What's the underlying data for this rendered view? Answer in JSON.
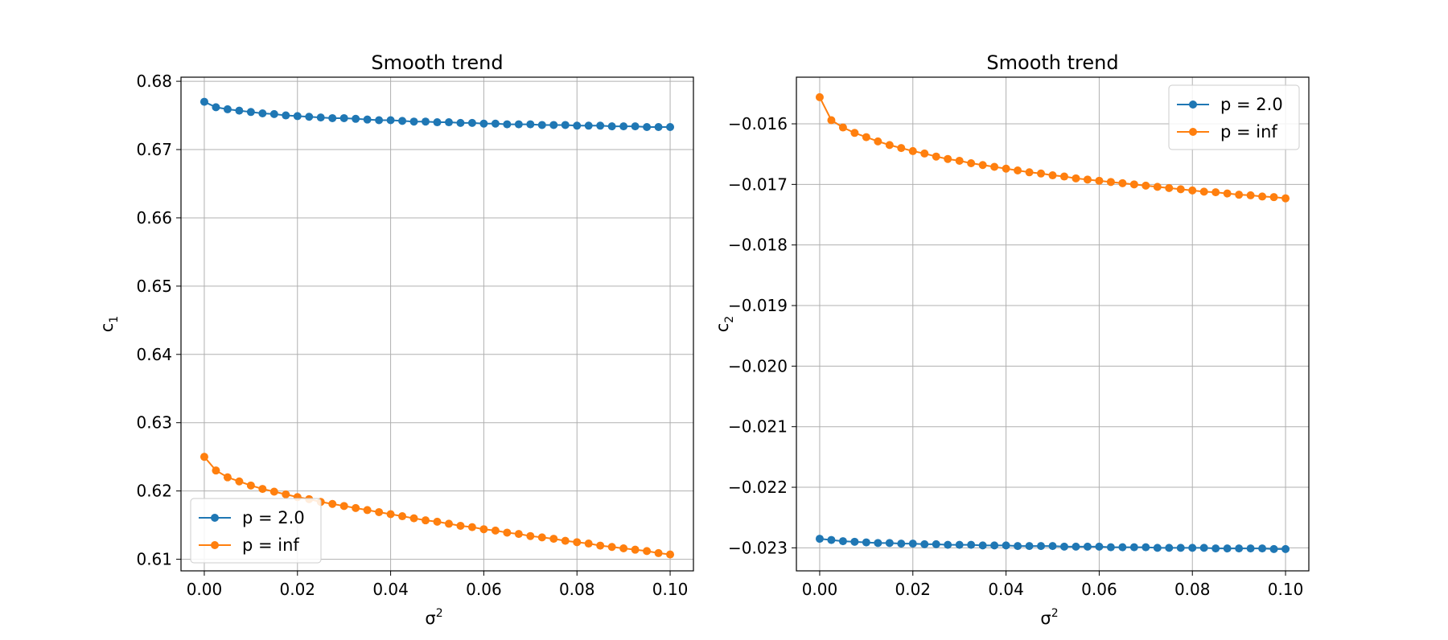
{
  "chart_data": [
    {
      "type": "line",
      "title": "Smooth trend",
      "xlabel": "σ",
      "xlabel_sup": "2",
      "ylabel": "c",
      "ylabel_sub": "1",
      "xlim": [
        -0.005,
        0.105
      ],
      "ylim": [
        0.6083,
        0.6806
      ],
      "xticks": [
        0.0,
        0.02,
        0.04,
        0.06,
        0.08,
        0.1
      ],
      "xtick_labels": [
        "0.00",
        "0.02",
        "0.04",
        "0.06",
        "0.08",
        "0.10"
      ],
      "yticks": [
        0.61,
        0.62,
        0.63,
        0.64,
        0.65,
        0.66,
        0.67,
        0.68
      ],
      "ytick_labels": [
        "0.61",
        "0.62",
        "0.63",
        "0.64",
        "0.65",
        "0.66",
        "0.67",
        "0.68"
      ],
      "grid": true,
      "legend": "lower-left",
      "x": [
        0.0,
        0.0025,
        0.005,
        0.0075,
        0.01,
        0.0125,
        0.015,
        0.0175,
        0.02,
        0.0225,
        0.025,
        0.0275,
        0.03,
        0.0325,
        0.035,
        0.0375,
        0.04,
        0.0425,
        0.045,
        0.0475,
        0.05,
        0.0525,
        0.055,
        0.0575,
        0.06,
        0.0625,
        0.065,
        0.0675,
        0.07,
        0.0725,
        0.075,
        0.0775,
        0.08,
        0.0825,
        0.085,
        0.0875,
        0.09,
        0.0925,
        0.095,
        0.0975,
        0.1
      ],
      "series": [
        {
          "name": "p = 2.0",
          "color": "#1f77b4",
          "values": [
            0.677,
            0.6762,
            0.6759,
            0.6757,
            0.6755,
            0.6753,
            0.6752,
            0.675,
            0.6749,
            0.6748,
            0.6747,
            0.6746,
            0.6746,
            0.6745,
            0.6744,
            0.6743,
            0.6743,
            0.6742,
            0.6741,
            0.6741,
            0.674,
            0.674,
            0.6739,
            0.6739,
            0.6738,
            0.6738,
            0.6737,
            0.6737,
            0.6737,
            0.6736,
            0.6736,
            0.6736,
            0.6735,
            0.6735,
            0.6735,
            0.6734,
            0.6734,
            0.6734,
            0.6733,
            0.6733,
            0.6733
          ]
        },
        {
          "name": "p = inf",
          "color": "#ff7f0e",
          "values": [
            0.625,
            0.623,
            0.622,
            0.6214,
            0.6208,
            0.6203,
            0.6199,
            0.6195,
            0.6191,
            0.6188,
            0.6184,
            0.6181,
            0.6178,
            0.6175,
            0.6172,
            0.6169,
            0.6166,
            0.6163,
            0.616,
            0.6157,
            0.6155,
            0.6152,
            0.6149,
            0.6147,
            0.6144,
            0.6142,
            0.6139,
            0.6137,
            0.6134,
            0.6132,
            0.613,
            0.6127,
            0.6125,
            0.6123,
            0.612,
            0.6118,
            0.6116,
            0.6114,
            0.6112,
            0.6109,
            0.6107
          ]
        }
      ]
    },
    {
      "type": "line",
      "title": "Smooth trend",
      "xlabel": "σ",
      "xlabel_sup": "2",
      "ylabel": "c",
      "ylabel_sub": "2",
      "xlim": [
        -0.005,
        0.105
      ],
      "ylim": [
        -0.02338,
        -0.01523
      ],
      "xticks": [
        0.0,
        0.02,
        0.04,
        0.06,
        0.08,
        0.1
      ],
      "xtick_labels": [
        "0.00",
        "0.02",
        "0.04",
        "0.06",
        "0.08",
        "0.10"
      ],
      "yticks": [
        -0.016,
        -0.017,
        -0.018,
        -0.019,
        -0.02,
        -0.021,
        -0.022,
        -0.023
      ],
      "ytick_labels": [
        "−0.016",
        "−0.017",
        "−0.018",
        "−0.019",
        "−0.020",
        "−0.021",
        "−0.022",
        "−0.023"
      ],
      "grid": true,
      "legend": "upper-right",
      "x": [
        0.0,
        0.0025,
        0.005,
        0.0075,
        0.01,
        0.0125,
        0.015,
        0.0175,
        0.02,
        0.0225,
        0.025,
        0.0275,
        0.03,
        0.0325,
        0.035,
        0.0375,
        0.04,
        0.0425,
        0.045,
        0.0475,
        0.05,
        0.0525,
        0.055,
        0.0575,
        0.06,
        0.0625,
        0.065,
        0.0675,
        0.07,
        0.0725,
        0.075,
        0.0775,
        0.08,
        0.0825,
        0.085,
        0.0875,
        0.09,
        0.0925,
        0.095,
        0.0975,
        0.1
      ],
      "series": [
        {
          "name": "p = 2.0",
          "color": "#1f77b4",
          "values": [
            -0.02285,
            -0.02287,
            -0.02289,
            -0.0229,
            -0.02291,
            -0.02292,
            -0.02292,
            -0.02293,
            -0.02293,
            -0.02294,
            -0.02294,
            -0.02295,
            -0.02295,
            -0.02295,
            -0.02296,
            -0.02296,
            -0.02296,
            -0.02297,
            -0.02297,
            -0.02297,
            -0.02297,
            -0.02298,
            -0.02298,
            -0.02298,
            -0.02298,
            -0.02299,
            -0.02299,
            -0.02299,
            -0.02299,
            -0.023,
            -0.023,
            -0.023,
            -0.023,
            -0.023,
            -0.02301,
            -0.02301,
            -0.02301,
            -0.02301,
            -0.02301,
            -0.02302,
            -0.02302
          ]
        },
        {
          "name": "p = inf",
          "color": "#ff7f0e",
          "values": [
            -0.01556,
            -0.01594,
            -0.01606,
            -0.01615,
            -0.01622,
            -0.01629,
            -0.01635,
            -0.0164,
            -0.01645,
            -0.01649,
            -0.01654,
            -0.01658,
            -0.01661,
            -0.01665,
            -0.01668,
            -0.01671,
            -0.01674,
            -0.01677,
            -0.0168,
            -0.01682,
            -0.01685,
            -0.01687,
            -0.0169,
            -0.01692,
            -0.01694,
            -0.01696,
            -0.01698,
            -0.017,
            -0.01702,
            -0.01704,
            -0.01706,
            -0.01708,
            -0.0171,
            -0.01712,
            -0.01713,
            -0.01715,
            -0.01717,
            -0.01718,
            -0.0172,
            -0.01721,
            -0.01723
          ]
        }
      ]
    }
  ]
}
